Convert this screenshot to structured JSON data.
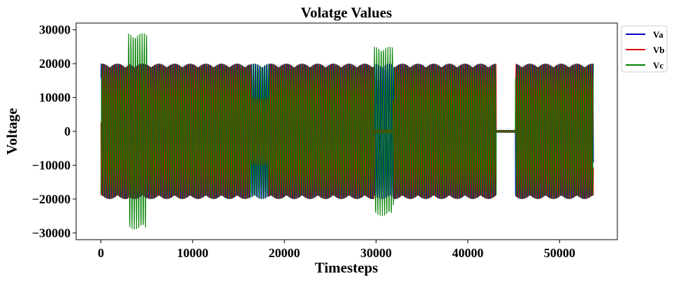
{
  "chart_data": {
    "type": "line",
    "title": "Volatge Values",
    "xlabel": "Timesteps",
    "ylabel": "Voltage",
    "xlim": [
      -2700,
      56300
    ],
    "ylim": [
      -32000,
      32000
    ],
    "xticks": [
      0,
      10000,
      20000,
      30000,
      40000,
      50000
    ],
    "xtick_labels": [
      "0",
      "10000",
      "20000",
      "30000",
      "40000",
      "50000"
    ],
    "yticks": [
      -30000,
      -20000,
      -10000,
      0,
      10000,
      20000,
      30000
    ],
    "ytick_labels": [
      "−30000",
      "−20000",
      "−10000",
      "0",
      "10000",
      "20000",
      "30000"
    ],
    "grid": false,
    "legend_position": "outside-top-right",
    "series": [
      {
        "name": "Va",
        "color": "#0000cc",
        "segments": [
          {
            "x": [
              0,
              3000
            ],
            "amplitude": 20000
          },
          {
            "x": [
              3000,
              5000
            ],
            "amplitude": 20000
          },
          {
            "x": [
              5000,
              16300
            ],
            "amplitude": 20000
          },
          {
            "x": [
              16300,
              18300
            ],
            "amplitude": 20000
          },
          {
            "x": [
              18300,
              29800
            ],
            "amplitude": 20000
          },
          {
            "x": [
              29800,
              31900
            ],
            "amplitude": 20000
          },
          {
            "x": [
              31900,
              43100
            ],
            "amplitude": 20000
          },
          {
            "x": [
              43100,
              45200
            ],
            "amplitude": 300
          },
          {
            "x": [
              45200,
              53700
            ],
            "amplitude": 20000
          }
        ]
      },
      {
        "name": "Vb",
        "color": "#dd0000",
        "segments": [
          {
            "x": [
              0,
              3000
            ],
            "amplitude": 20000
          },
          {
            "x": [
              3000,
              5000
            ],
            "amplitude": 20000
          },
          {
            "x": [
              5000,
              16300
            ],
            "amplitude": 20000
          },
          {
            "x": [
              16300,
              18300
            ],
            "amplitude": 10000
          },
          {
            "x": [
              18300,
              29800
            ],
            "amplitude": 20000
          },
          {
            "x": [
              29800,
              31900
            ],
            "amplitude": 600
          },
          {
            "x": [
              31900,
              43100
            ],
            "amplitude": 20000
          },
          {
            "x": [
              43100,
              45200
            ],
            "amplitude": 300
          },
          {
            "x": [
              45200,
              53700
            ],
            "amplitude": 20000
          }
        ]
      },
      {
        "name": "Vc",
        "color": "#008000",
        "segments": [
          {
            "x": [
              0,
              3000
            ],
            "amplitude": 20000
          },
          {
            "x": [
              3000,
              5000
            ],
            "amplitude": 29000
          },
          {
            "x": [
              5000,
              16300
            ],
            "amplitude": 20000
          },
          {
            "x": [
              16300,
              18300
            ],
            "amplitude": 20000
          },
          {
            "x": [
              18300,
              29800
            ],
            "amplitude": 20000
          },
          {
            "x": [
              29800,
              31900
            ],
            "amplitude": 25000
          },
          {
            "x": [
              31900,
              43100
            ],
            "amplitude": 20000
          },
          {
            "x": [
              43100,
              45200
            ],
            "amplitude": 300
          },
          {
            "x": [
              45200,
              53700
            ],
            "amplitude": 20000
          }
        ]
      }
    ]
  }
}
